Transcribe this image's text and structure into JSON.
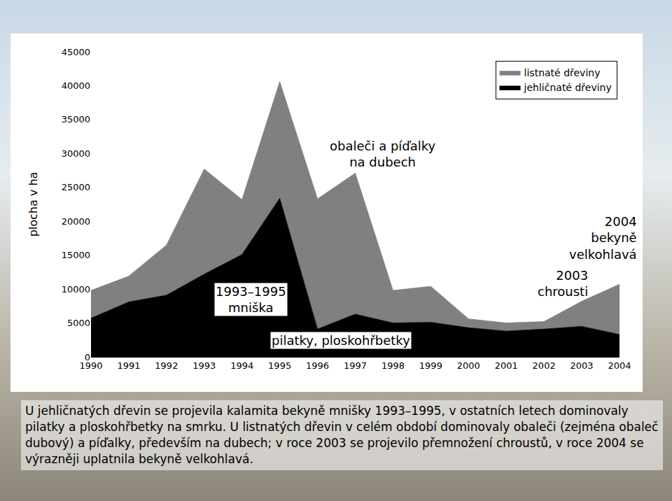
{
  "chart_data": {
    "type": "area",
    "stacked": true,
    "y_label": "plocha v ha",
    "x": [
      1990,
      1991,
      1992,
      1993,
      1994,
      1995,
      1996,
      1997,
      1998,
      1999,
      2000,
      2001,
      2002,
      2003,
      2004
    ],
    "series": [
      {
        "name": "jehličnaté dřeviny",
        "color": "#000000",
        "values": [
          5700,
          8100,
          9100,
          12200,
          15100,
          23400,
          4100,
          6300,
          5000,
          5100,
          4300,
          3800,
          4100,
          4500,
          3300
        ]
      },
      {
        "name": "listnaté dřeviny",
        "color": "#808080",
        "values": [
          4100,
          3800,
          7400,
          15500,
          8100,
          17200,
          19200,
          20800,
          4800,
          5300,
          1300,
          1200,
          1100,
          3700,
          7400
        ]
      }
    ],
    "xlim": [
      1990,
      2004
    ],
    "xticks": [
      1990,
      1991,
      1992,
      1993,
      1994,
      1995,
      1996,
      1997,
      1998,
      1999,
      2000,
      2001,
      2002,
      2003,
      2004
    ],
    "ylim": [
      0,
      45000
    ],
    "yticks": [
      0,
      5000,
      10000,
      15000,
      20000,
      25000,
      30000,
      35000,
      40000,
      45000
    ],
    "grid": false,
    "legend": "upper right",
    "annotations": [
      {
        "lines": [
          "obaleči a píďalky",
          "na dubech"
        ]
      },
      {
        "lines": [
          "1993–1995",
          "mniška"
        ]
      },
      {
        "lines": [
          "pilatky, ploskohřbetky"
        ]
      },
      {
        "lines": [
          "2004",
          "bekyně",
          "velkohlavá"
        ]
      },
      {
        "lines": [
          "2003",
          "chrousti"
        ]
      }
    ],
    "caption": "U jehličnatých dřevin se projevila kalamita bekyně mnišky 1993–1995, v ostatních letech dominovaly pilatky a ploskohřbetky na smrku. U listnatých dřevin v celém období dominovaly obaleči (zejména obaleč dubový) a píďalky, především na dubech; v roce 2003 se projevilo přemnožení chroustů, v roce 2004 se výrazněji uplatnila bekyně velkohlavá."
  }
}
